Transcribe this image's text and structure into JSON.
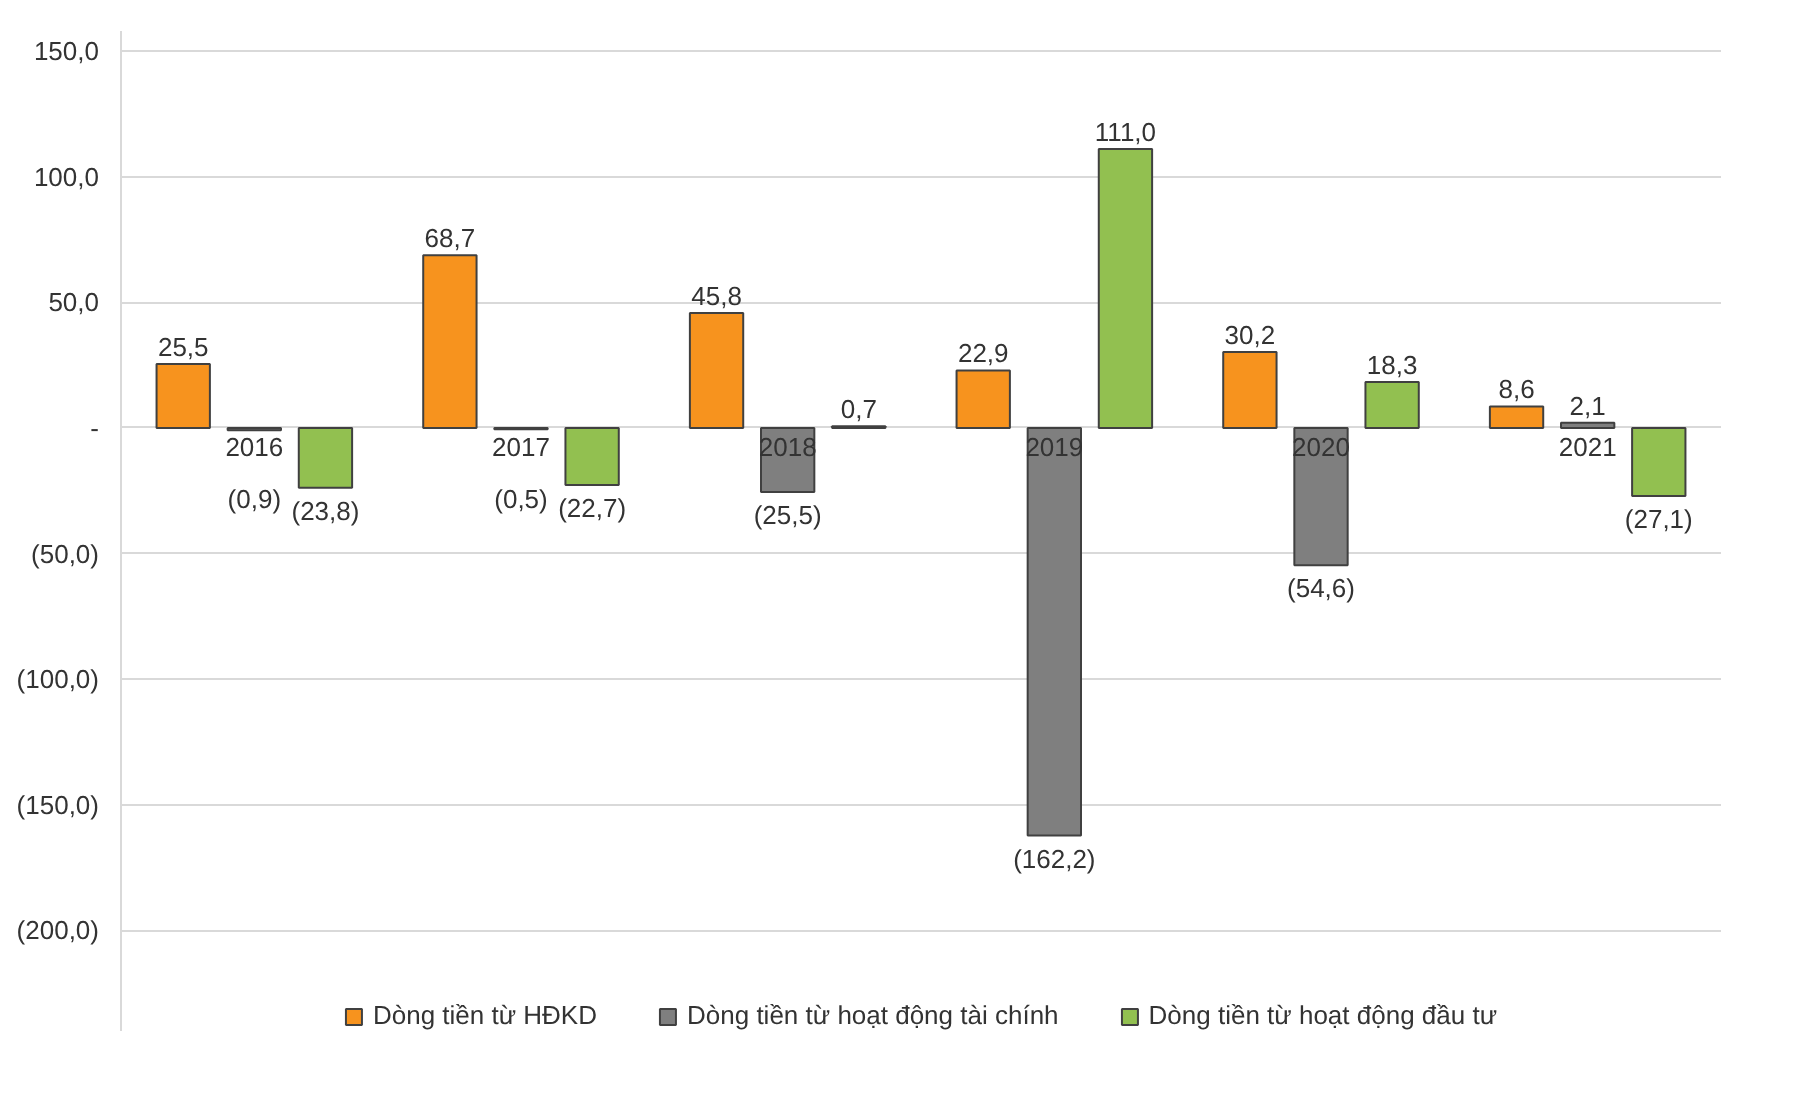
{
  "chart_data": {
    "type": "bar",
    "categories": [
      "2016",
      "2017",
      "2018",
      "2019",
      "2020",
      "2021"
    ],
    "series": [
      {
        "name": "Dòng tiền từ HĐKD",
        "color": "#f7931e",
        "values": [
          25.5,
          68.7,
          45.8,
          22.9,
          30.2,
          8.6
        ],
        "value_labels": [
          "25,5",
          "68,7",
          "45,8",
          "22,9",
          "30,2",
          "8,6"
        ]
      },
      {
        "name": "Dòng tiền từ hoạt động tài chính",
        "color": "#7f7f7f",
        "values": [
          -0.9,
          -0.5,
          -25.5,
          -162.2,
          -54.6,
          2.1
        ],
        "value_labels": [
          "(0,9)",
          "(0,5)",
          "(25,5)",
          "(162,2)",
          "(54,6)",
          "2,1"
        ]
      },
      {
        "name": "Dòng tiền từ hoạt động đầu tư",
        "color": "#92c050",
        "values": [
          -23.8,
          -22.7,
          0.7,
          111.0,
          18.3,
          -27.1
        ],
        "value_labels": [
          "(23,8)",
          "(22,7)",
          "0,7",
          "111,0",
          "18,3",
          "(27,1)"
        ]
      }
    ],
    "ylim": [
      -240,
      158
    ],
    "yticks": [
      {
        "value": 150,
        "label": "150,0"
      },
      {
        "value": 100,
        "label": "100,0"
      },
      {
        "value": 50,
        "label": "50,0"
      },
      {
        "value": 0,
        "label": "-"
      },
      {
        "value": -50,
        "label": "(50,0)"
      },
      {
        "value": -100,
        "label": "(100,0)"
      },
      {
        "value": -150,
        "label": "(150,0)"
      },
      {
        "value": -200,
        "label": "(200,0)"
      }
    ],
    "grid": "y",
    "legend": "bottom"
  }
}
